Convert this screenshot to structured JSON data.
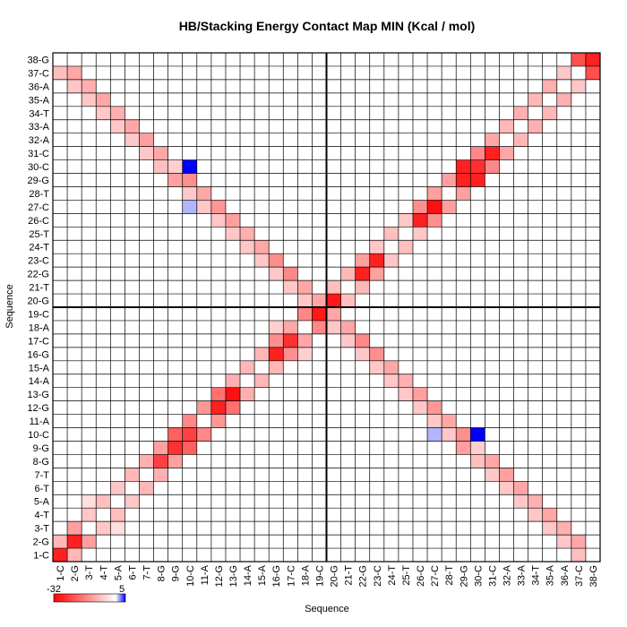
{
  "chart_data": {
    "type": "heatmap",
    "title": "HB/Stacking Energy Contact Map MIN (Kcal / mol)",
    "xlabel": "Sequence",
    "ylabel": "Sequence",
    "sequence": [
      "1-C",
      "2-G",
      "3-T",
      "4-T",
      "5-A",
      "6-T",
      "7-T",
      "8-G",
      "9-G",
      "10-C",
      "11-A",
      "12-G",
      "13-G",
      "14-A",
      "15-A",
      "16-G",
      "17-C",
      "18-A",
      "19-C",
      "20-G",
      "21-T",
      "22-G",
      "23-C",
      "24-T",
      "25-T",
      "26-C",
      "27-C",
      "28-T",
      "29-G",
      "30-C",
      "31-C",
      "32-A",
      "33-A",
      "34-T",
      "35-A",
      "36-A",
      "37-C",
      "38-G"
    ],
    "color_scale": {
      "min_label": "-32",
      "max_label": "5",
      "min": -32,
      "max": 5,
      "neg_color": "#ff0000",
      "zero_color": "#ffffff",
      "pos_color": "#0000ff"
    },
    "divider_after_index": 19,
    "grid": true,
    "cells": [
      [
        1,
        1,
        -28
      ],
      [
        1,
        2,
        -9
      ],
      [
        2,
        3,
        -12
      ],
      [
        3,
        4,
        -7
      ],
      [
        4,
        5,
        -8
      ],
      [
        5,
        6,
        -7
      ],
      [
        6,
        7,
        -9
      ],
      [
        7,
        8,
        -10
      ],
      [
        8,
        9,
        -12
      ],
      [
        9,
        10,
        -20
      ],
      [
        10,
        11,
        -15
      ],
      [
        11,
        12,
        -13
      ],
      [
        12,
        13,
        -18
      ],
      [
        13,
        14,
        -10
      ],
      [
        14,
        15,
        -9
      ],
      [
        15,
        16,
        -9
      ],
      [
        16,
        17,
        -14
      ],
      [
        17,
        18,
        -11
      ],
      [
        18,
        19,
        -15
      ],
      [
        19,
        20,
        -11
      ],
      [
        20,
        21,
        -8
      ],
      [
        21,
        22,
        -9
      ],
      [
        22,
        23,
        -12
      ],
      [
        23,
        24,
        -7
      ],
      [
        24,
        25,
        -8
      ],
      [
        25,
        26,
        -7
      ],
      [
        26,
        27,
        -14
      ],
      [
        27,
        28,
        -12
      ],
      [
        28,
        29,
        -12
      ],
      [
        29,
        30,
        -28
      ],
      [
        30,
        31,
        -15
      ],
      [
        31,
        32,
        -11
      ],
      [
        32,
        33,
        -9
      ],
      [
        33,
        34,
        -10
      ],
      [
        34,
        35,
        -9
      ],
      [
        35,
        36,
        -10
      ],
      [
        36,
        37,
        -7
      ],
      [
        37,
        38,
        -22
      ],
      [
        2,
        2,
        -28
      ],
      [
        9,
        9,
        -26
      ],
      [
        12,
        12,
        -28
      ],
      [
        13,
        13,
        -30
      ],
      [
        16,
        16,
        -28
      ],
      [
        17,
        17,
        -26
      ],
      [
        19,
        19,
        -29
      ],
      [
        20,
        20,
        -29
      ],
      [
        22,
        22,
        -28
      ],
      [
        23,
        23,
        -28
      ],
      [
        26,
        26,
        -28
      ],
      [
        27,
        27,
        -30
      ],
      [
        31,
        31,
        -28
      ],
      [
        30,
        30,
        -26
      ],
      [
        38,
        38,
        -28
      ],
      [
        8,
        8,
        -24
      ],
      [
        10,
        10,
        -24
      ],
      [
        29,
        29,
        -28
      ],
      [
        10,
        30,
        5
      ],
      [
        10,
        27,
        1.5
      ],
      [
        1,
        37,
        -8
      ],
      [
        2,
        37,
        -11
      ],
      [
        2,
        36,
        -7
      ],
      [
        3,
        36,
        -10
      ],
      [
        3,
        35,
        -7
      ],
      [
        4,
        35,
        -11
      ],
      [
        4,
        34,
        -7
      ],
      [
        5,
        34,
        -10
      ],
      [
        5,
        33,
        -7
      ],
      [
        6,
        33,
        -11
      ],
      [
        6,
        32,
        -7
      ],
      [
        7,
        32,
        -12
      ],
      [
        7,
        31,
        -7
      ],
      [
        8,
        31,
        -11
      ],
      [
        9,
        29,
        -12
      ],
      [
        10,
        29,
        -14
      ],
      [
        10,
        28,
        -7
      ],
      [
        11,
        28,
        -11
      ],
      [
        11,
        27,
        -7
      ],
      [
        12,
        27,
        -13
      ],
      [
        12,
        26,
        -7
      ],
      [
        13,
        26,
        -12
      ],
      [
        13,
        25,
        -7
      ],
      [
        14,
        25,
        -10
      ],
      [
        14,
        24,
        -7
      ],
      [
        15,
        24,
        -11
      ],
      [
        15,
        23,
        -7
      ],
      [
        16,
        23,
        -14
      ],
      [
        16,
        22,
        -7
      ],
      [
        17,
        22,
        -15
      ],
      [
        17,
        21,
        -7
      ],
      [
        18,
        21,
        -11
      ],
      [
        18,
        20,
        -7
      ],
      [
        8,
        30,
        -8
      ],
      [
        9,
        30,
        -6
      ],
      [
        16,
        18,
        -6
      ],
      [
        3,
        5,
        -4
      ]
    ]
  }
}
